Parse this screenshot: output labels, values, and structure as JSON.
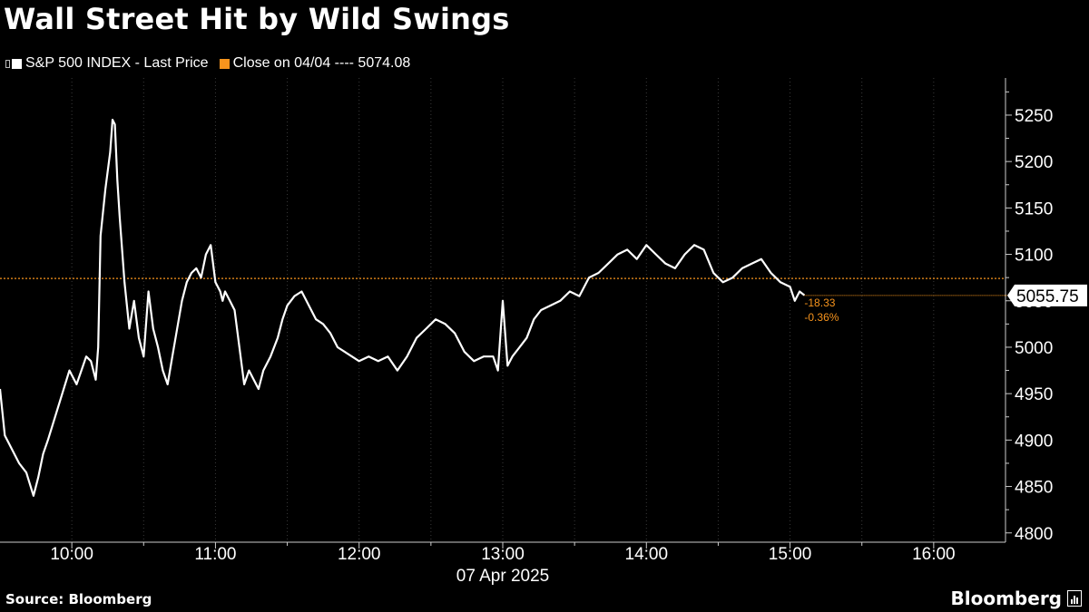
{
  "title": "Wall Street Hit by Wild Swings",
  "legend": {
    "series_label": "S&P 500 INDEX - Last Price",
    "ref_label": "Close on 04/04 ---- 5074.08",
    "series_color": "#ffffff",
    "ref_color": "#f7941d"
  },
  "source": "Source: Bloomberg",
  "brand": "Bloomberg",
  "chart_data": {
    "type": "line",
    "title": "Wall Street Hit by Wild Swings",
    "date_label": "07 Apr 2025",
    "x_ticks": [
      "10:00",
      "11:00",
      "12:00",
      "13:00",
      "14:00",
      "15:00",
      "16:00"
    ],
    "y_ticks": [
      4800,
      4850,
      4900,
      4950,
      5000,
      5050,
      5100,
      5150,
      5200,
      5250
    ],
    "xlim": [
      "09:30",
      "16:30"
    ],
    "ylim": [
      4790,
      5290
    ],
    "grid": true,
    "legend_position": "top-left",
    "reference_line": {
      "label": "Close on 04/04",
      "value": 5074.08
    },
    "last_value": {
      "value": 5055.75,
      "label": "5055.75",
      "change": "-18.33",
      "change_pct": "-0.36%"
    },
    "series": [
      {
        "name": "S&P 500 INDEX - Last Price",
        "x": [
          "09:30",
          "09:32",
          "09:35",
          "09:38",
          "09:41",
          "09:44",
          "09:46",
          "09:48",
          "09:50",
          "09:53",
          "09:56",
          "09:59",
          "10:02",
          "10:04",
          "10:06",
          "10:08",
          "10:10",
          "10:11",
          "10:12",
          "10:14",
          "10:16",
          "10:17",
          "10:18",
          "10:19",
          "10:20",
          "10:22",
          "10:24",
          "10:26",
          "10:28",
          "10:30",
          "10:32",
          "10:34",
          "10:36",
          "10:38",
          "10:40",
          "10:42",
          "10:44",
          "10:46",
          "10:48",
          "10:50",
          "10:52",
          "10:54",
          "10:56",
          "10:58",
          "11:00",
          "11:02",
          "11:03",
          "11:04",
          "11:06",
          "11:08",
          "11:10",
          "11:12",
          "11:14",
          "11:16",
          "11:18",
          "11:20",
          "11:23",
          "11:26",
          "11:28",
          "11:30",
          "11:33",
          "11:36",
          "11:39",
          "11:42",
          "11:45",
          "11:48",
          "11:51",
          "11:54",
          "11:57",
          "12:00",
          "12:04",
          "12:08",
          "12:12",
          "12:16",
          "12:20",
          "12:24",
          "12:28",
          "12:32",
          "12:36",
          "12:40",
          "12:44",
          "12:48",
          "12:52",
          "12:56",
          "12:58",
          "13:00",
          "13:02",
          "13:04",
          "13:07",
          "13:10",
          "13:13",
          "13:16",
          "13:20",
          "13:24",
          "13:28",
          "13:32",
          "13:36",
          "13:40",
          "13:44",
          "13:48",
          "13:52",
          "13:56",
          "14:00",
          "14:04",
          "14:08",
          "14:12",
          "14:16",
          "14:20",
          "14:24",
          "14:28",
          "14:32",
          "14:36",
          "14:40",
          "14:44",
          "14:48",
          "14:52",
          "14:56",
          "15:00",
          "15:02",
          "15:04",
          "15:06"
        ],
        "y": [
          4955,
          4905,
          4890,
          4875,
          4865,
          4840,
          4860,
          4885,
          4900,
          4925,
          4950,
          4975,
          4960,
          4975,
          4990,
          4985,
          4965,
          5000,
          5120,
          5170,
          5210,
          5245,
          5240,
          5180,
          5140,
          5070,
          5020,
          5050,
          5010,
          4990,
          5060,
          5020,
          5000,
          4975,
          4960,
          4990,
          5020,
          5050,
          5070,
          5080,
          5085,
          5075,
          5100,
          5110,
          5070,
          5060,
          5050,
          5060,
          5050,
          5040,
          5000,
          4960,
          4975,
          4965,
          4955,
          4975,
          4990,
          5010,
          5030,
          5045,
          5055,
          5060,
          5045,
          5030,
          5025,
          5015,
          5000,
          4995,
          4990,
          4985,
          4990,
          4985,
          4990,
          4975,
          4990,
          5010,
          5020,
          5030,
          5025,
          5015,
          4995,
          4985,
          4990,
          4990,
          4975,
          5050,
          4980,
          4990,
          5000,
          5010,
          5030,
          5040,
          5045,
          5050,
          5060,
          5055,
          5075,
          5080,
          5090,
          5100,
          5105,
          5095,
          5110,
          5100,
          5090,
          5085,
          5100,
          5110,
          5105,
          5080,
          5070,
          5075,
          5085,
          5090,
          5095,
          5080,
          5070,
          5065,
          5050,
          5060,
          5056
        ]
      }
    ]
  }
}
